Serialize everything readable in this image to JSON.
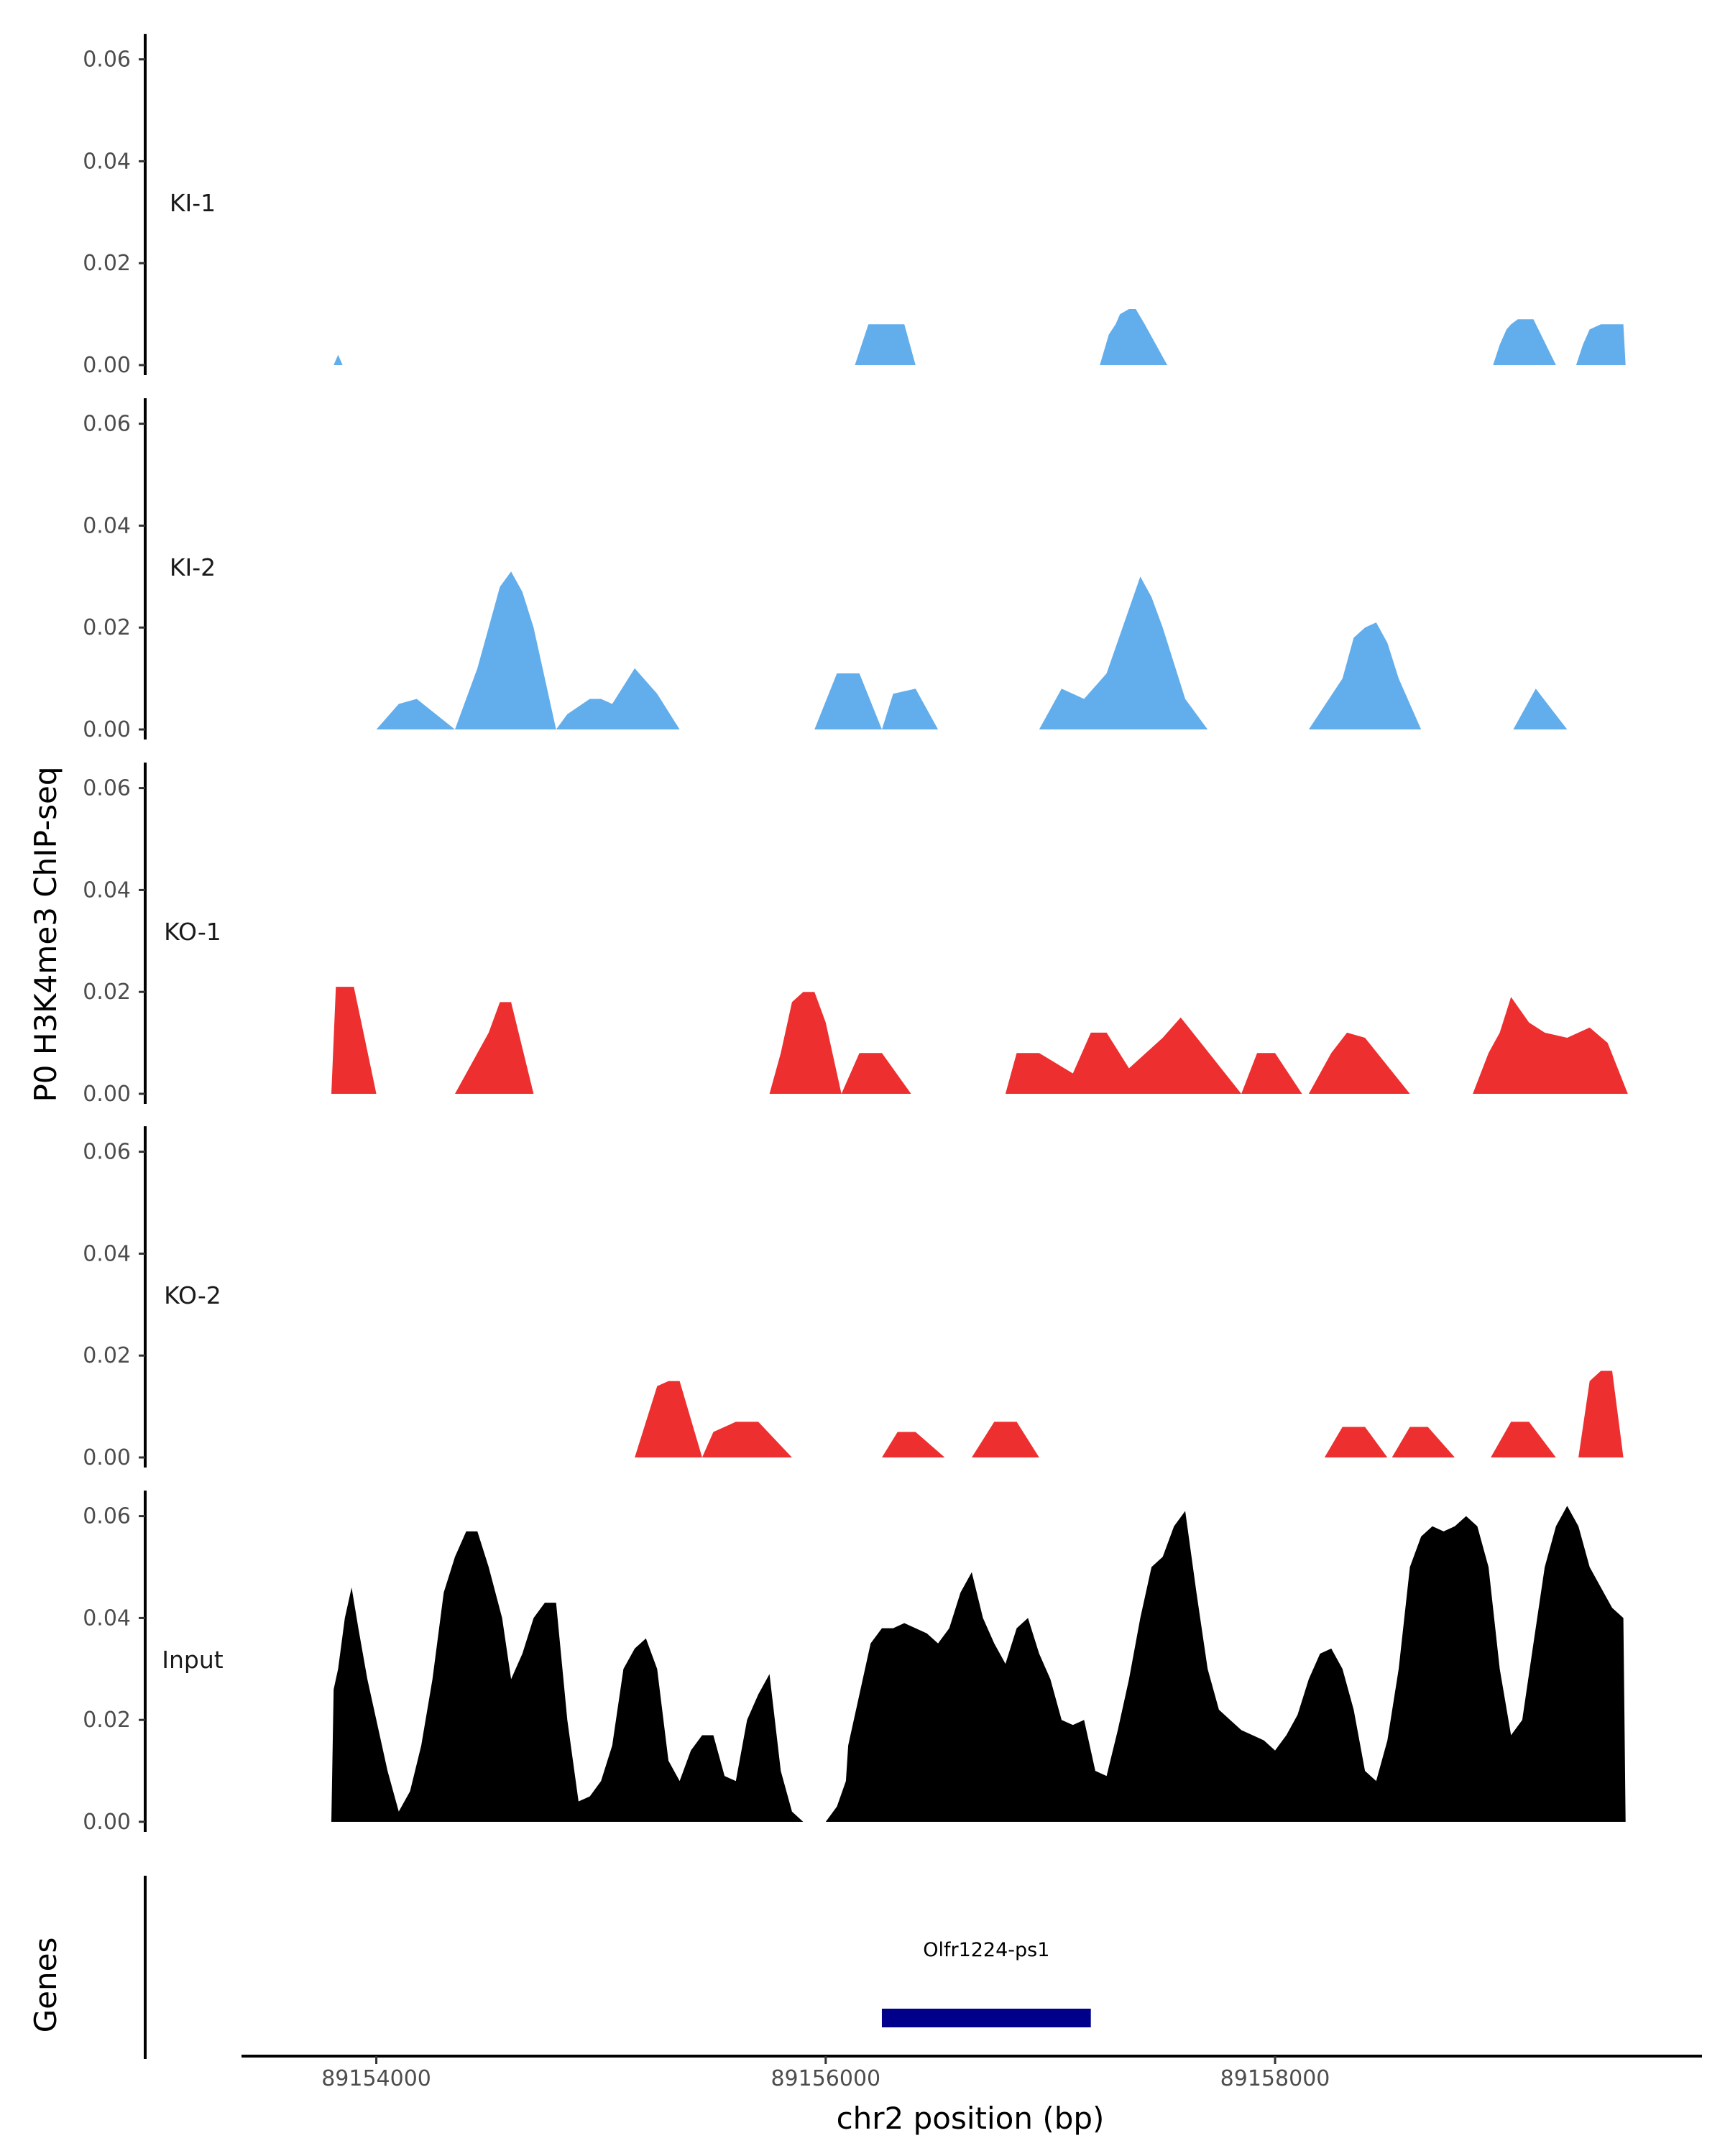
{
  "chart_data": {
    "type": "area",
    "ylabel": "P0 H3K4me3 ChIP-seq",
    "xlabel": "chr2 position (bp)",
    "ylim": [
      0,
      0.065
    ],
    "xlim": [
      89153400,
      89159900
    ],
    "y_ticks": [
      "0.00",
      "0.02",
      "0.04",
      "0.06"
    ],
    "x_ticks": [
      {
        "value": 89154000,
        "label": "89154000"
      },
      {
        "value": 89156000,
        "label": "89156000"
      },
      {
        "value": 89158000,
        "label": "89158000"
      }
    ],
    "tracks": [
      {
        "name": "KI-1",
        "color": "#62aeec",
        "x": [
          89153810,
          89153830,
          89153850,
          89156130,
          89156190,
          89156350,
          89156400,
          89157220,
          89157260,
          89157290,
          89157310,
          89157350,
          89157380,
          89157420,
          89157520,
          89158970,
          89159000,
          89159030,
          89159050,
          89159080,
          89159110,
          89159150,
          89159250,
          89159340,
          89159370,
          89159400,
          89159450,
          89159480,
          89159510,
          89159550,
          89159560
        ],
        "y": [
          0,
          0.002,
          0,
          0,
          0.008,
          0.008,
          0,
          0,
          0.006,
          0.008,
          0.01,
          0.011,
          0.011,
          0.008,
          0,
          0,
          0.004,
          0.007,
          0.008,
          0.009,
          0.009,
          0.009,
          0,
          0,
          0.004,
          0.007,
          0.008,
          0.008,
          0.008,
          0.008,
          0
        ]
      },
      {
        "name": "KI-2",
        "color": "#62aeec",
        "x": [
          89154000,
          89154100,
          89154180,
          89154350,
          89154450,
          89154500,
          89154550,
          89154600,
          89154650,
          89154700,
          89154800,
          89154850,
          89154950,
          89155000,
          89155050,
          89155150,
          89155250,
          89155350,
          89155450,
          89155950,
          89156050,
          89156150,
          89156250,
          89156300,
          89156400,
          89156500,
          89156950,
          89157050,
          89157150,
          89157250,
          89157400,
          89157450,
          89157500,
          89157600,
          89157700,
          89158150,
          89158300,
          89158350,
          89158400,
          89158450,
          89158500,
          89158550,
          89158650,
          89159060,
          89159160,
          89159300
        ],
        "y": [
          0,
          0.005,
          0.006,
          0,
          0.012,
          0.02,
          0.028,
          0.031,
          0.027,
          0.02,
          0,
          0.003,
          0.006,
          0.006,
          0.005,
          0.012,
          0.007,
          0,
          0,
          0,
          0.011,
          0.011,
          0,
          0.007,
          0.008,
          0,
          0,
          0.008,
          0.006,
          0.011,
          0.03,
          0.026,
          0.02,
          0.006,
          0,
          0,
          0.01,
          0.018,
          0.02,
          0.021,
          0.017,
          0.01,
          0,
          0,
          0.008,
          0
        ]
      },
      {
        "name": "KO-1",
        "color": "#ee2f2f",
        "x": [
          89153800,
          89153820,
          89153900,
          89154000,
          89154350,
          89154500,
          89154550,
          89154600,
          89154700,
          89155750,
          89155800,
          89155850,
          89155900,
          89155950,
          89156000,
          89156070,
          89156150,
          89156250,
          89156380,
          89156800,
          89156850,
          89156950,
          89157100,
          89157180,
          89157250,
          89157350,
          89157500,
          89157580,
          89157850,
          89157920,
          89158000,
          89158120,
          89158150,
          89158250,
          89158320,
          89158400,
          89158600,
          89158880,
          89158950,
          89159000,
          89159050,
          89159130,
          89159200,
          89159300,
          89159400,
          89159480,
          89159570
        ],
        "y": [
          0,
          0.021,
          0.021,
          0,
          0,
          0.012,
          0.018,
          0.018,
          0,
          0,
          0.008,
          0.018,
          0.02,
          0.02,
          0.014,
          0,
          0.008,
          0.008,
          0,
          0,
          0.008,
          0.008,
          0.004,
          0.012,
          0.012,
          0.005,
          0.011,
          0.015,
          0,
          0.008,
          0.008,
          0,
          0,
          0.008,
          0.012,
          0.011,
          0,
          0,
          0.008,
          0.012,
          0.019,
          0.014,
          0.012,
          0.011,
          0.013,
          0.01,
          0
        ]
      },
      {
        "name": "KO-2",
        "color": "#ee2f2f",
        "x": [
          89155150,
          89155250,
          89155300,
          89155350,
          89155450,
          89155500,
          89155600,
          89155700,
          89155850,
          89156250,
          89156320,
          89156400,
          89156530,
          89156650,
          89156750,
          89156850,
          89156950,
          89158220,
          89158300,
          89158400,
          89158500,
          89158520,
          89158600,
          89158680,
          89158800,
          89158960,
          89159050,
          89159130,
          89159250,
          89159350,
          89159400,
          89159450,
          89159500,
          89159550
        ],
        "y": [
          0,
          0.014,
          0.015,
          0.015,
          0,
          0.005,
          0.007,
          0.007,
          0,
          0,
          0.005,
          0.005,
          0,
          0,
          0.007,
          0.007,
          0,
          0,
          0.006,
          0.006,
          0,
          0,
          0.006,
          0.006,
          0,
          0,
          0.007,
          0.007,
          0,
          0,
          0.015,
          0.017,
          0.017,
          0
        ]
      },
      {
        "name": "Input",
        "color": "#000000",
        "x": [
          89153800,
          89153810,
          89153830,
          89153860,
          89153890,
          89153920,
          89153960,
          89154000,
          89154050,
          89154100,
          89154150,
          89154200,
          89154250,
          89154300,
          89154350,
          89154400,
          89154450,
          89154500,
          89154560,
          89154600,
          89154650,
          89154700,
          89154750,
          89154800,
          89154850,
          89154900,
          89154950,
          89155000,
          89155050,
          89155100,
          89155150,
          89155200,
          89155250,
          89155300,
          89155350,
          89155400,
          89155450,
          89155500,
          89155550,
          89155600,
          89155650,
          89155700,
          89155750,
          89155800,
          89155850,
          89155900,
          89155950,
          89156000,
          89156050,
          89156090,
          89156100,
          89156150,
          89156200,
          89156250,
          89156300,
          89156350,
          89156400,
          89156450,
          89156500,
          89156550,
          89156600,
          89156650,
          89156700,
          89156750,
          89156800,
          89156850,
          89156900,
          89156950,
          89157000,
          89157050,
          89157100,
          89157150,
          89157200,
          89157250,
          89157300,
          89157350,
          89157400,
          89157450,
          89157500,
          89157550,
          89157600,
          89157650,
          89157700,
          89157750,
          89157800,
          89157850,
          89157900,
          89157950,
          89158000,
          89158050,
          89158100,
          89158150,
          89158200,
          89158250,
          89158300,
          89158350,
          89158400,
          89158450,
          89158500,
          89158550,
          89158600,
          89158650,
          89158700,
          89158750,
          89158800,
          89158850,
          89158900,
          89158950,
          89159000,
          89159050,
          89159100,
          89159150,
          89159200,
          89159250,
          89159300,
          89159350,
          89159400,
          89159450,
          89159500,
          89159550,
          89159560
        ],
        "y": [
          0,
          0.026,
          0.03,
          0.04,
          0.046,
          0.038,
          0.028,
          0.02,
          0.01,
          0.002,
          0.006,
          0.015,
          0.028,
          0.045,
          0.052,
          0.057,
          0.057,
          0.05,
          0.04,
          0.028,
          0.033,
          0.04,
          0.043,
          0.043,
          0.02,
          0.004,
          0.005,
          0.008,
          0.015,
          0.03,
          0.034,
          0.036,
          0.03,
          0.012,
          0.008,
          0.014,
          0.017,
          0.017,
          0.009,
          0.008,
          0.02,
          0.025,
          0.029,
          0.01,
          0.002,
          0.0,
          0.0,
          0.0,
          0.003,
          0.008,
          0.015,
          0.025,
          0.035,
          0.038,
          0.038,
          0.039,
          0.038,
          0.037,
          0.035,
          0.038,
          0.045,
          0.049,
          0.04,
          0.035,
          0.031,
          0.038,
          0.04,
          0.033,
          0.028,
          0.02,
          0.019,
          0.02,
          0.01,
          0.009,
          0.018,
          0.028,
          0.04,
          0.05,
          0.052,
          0.058,
          0.061,
          0.045,
          0.03,
          0.022,
          0.02,
          0.018,
          0.017,
          0.016,
          0.014,
          0.017,
          0.021,
          0.028,
          0.033,
          0.034,
          0.03,
          0.022,
          0.01,
          0.008,
          0.016,
          0.03,
          0.05,
          0.056,
          0.058,
          0.057,
          0.058,
          0.06,
          0.058,
          0.05,
          0.03,
          0.017,
          0.02,
          0.035,
          0.05,
          0.058,
          0.062,
          0.058,
          0.05,
          0.046,
          0.042,
          0.04,
          0.0
        ]
      }
    ],
    "genes_track": {
      "label": "Genes",
      "genes": [
        {
          "name": "Olfr1224-ps1",
          "start": 89156250,
          "end": 89157180,
          "color": "#00008b"
        }
      ]
    }
  }
}
